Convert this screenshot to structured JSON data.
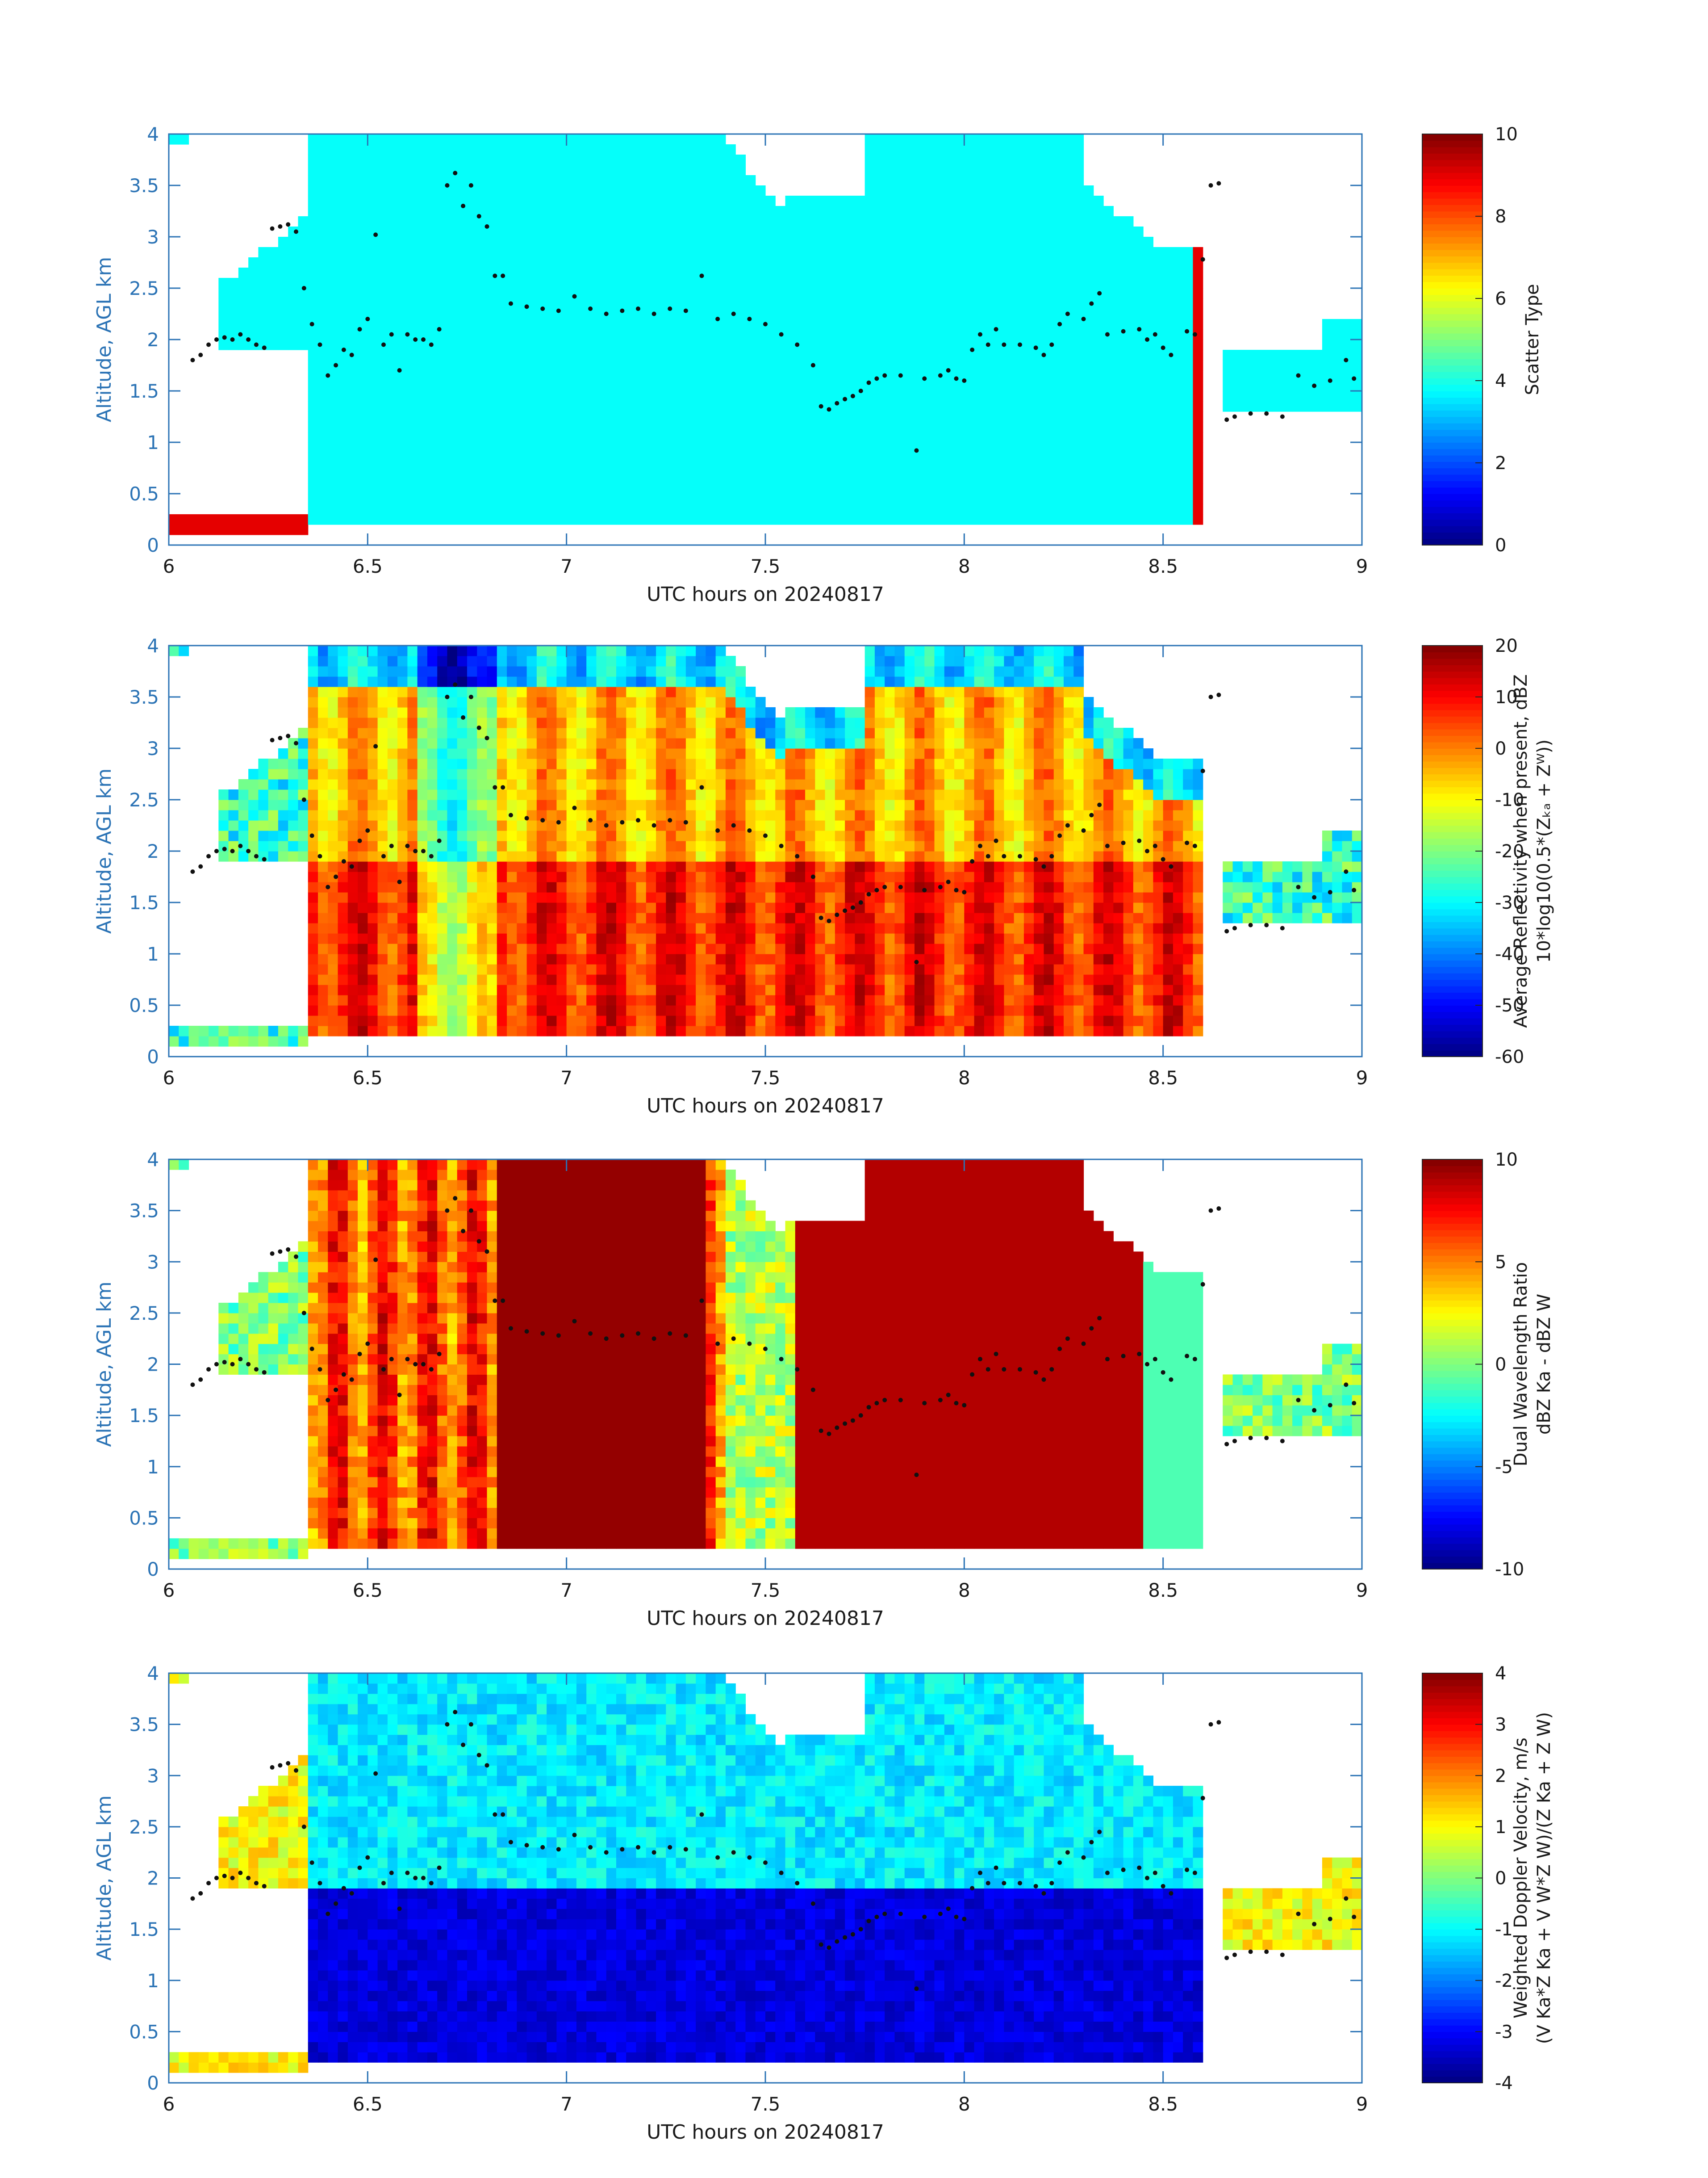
{
  "chart_data": [
    {
      "type": "heatmap",
      "title": "",
      "xlabel": "UTC hours on 20240817",
      "ylabel": "Altitude, AGL km",
      "xlim": [
        6,
        9
      ],
      "ylim": [
        0,
        4
      ],
      "xticks": [
        "6",
        "6.5",
        "7",
        "7.5",
        "8",
        "8.5",
        "9"
      ],
      "yticks": [
        "0",
        "0.5",
        "1",
        "1.5",
        "2",
        "2.5",
        "3",
        "3.5",
        "4"
      ],
      "colorbar": {
        "label_lines": [
          "Scatter Type"
        ],
        "range": [
          0,
          10
        ],
        "ticks": [
          "0",
          "2",
          "4",
          "6",
          "8",
          "10"
        ],
        "colormap": "jet"
      },
      "field": "scatter"
    },
    {
      "type": "heatmap",
      "title": "",
      "xlabel": "UTC hours on 20240817",
      "ylabel": "Altitude, AGL km",
      "xlim": [
        6,
        9
      ],
      "ylim": [
        0,
        4
      ],
      "xticks": [
        "6",
        "6.5",
        "7",
        "7.5",
        "8",
        "8.5",
        "9"
      ],
      "yticks": [
        "0",
        "0.5",
        "1",
        "1.5",
        "2",
        "2.5",
        "3",
        "3.5",
        "4"
      ],
      "colorbar": {
        "label_lines": [
          "Average Reflectivity when present, dBZ",
          "10*log10(0.5*(Zₖₐ + Zᵂ))"
        ],
        "range": [
          -60,
          20
        ],
        "ticks": [
          "-60",
          "-50",
          "-40",
          "-30",
          "-20",
          "-10",
          "0",
          "10",
          "20"
        ],
        "colormap": "jet"
      },
      "field": "reflectivity"
    },
    {
      "type": "heatmap",
      "title": "",
      "xlabel": "UTC hours on 20240817",
      "ylabel": "Altitude, AGL km",
      "xlim": [
        6,
        9
      ],
      "ylim": [
        0,
        4
      ],
      "xticks": [
        "6",
        "6.5",
        "7",
        "7.5",
        "8",
        "8.5",
        "9"
      ],
      "yticks": [
        "0",
        "0.5",
        "1",
        "1.5",
        "2",
        "2.5",
        "3",
        "3.5",
        "4"
      ],
      "colorbar": {
        "label_lines": [
          "Dual Wavelength Ratio",
          "dBZ Ka - dBZ W"
        ],
        "range": [
          -10,
          10
        ],
        "ticks": [
          "-10",
          "-5",
          "0",
          "5",
          "10"
        ],
        "colormap": "jet"
      },
      "field": "dwr"
    },
    {
      "type": "heatmap",
      "title": "",
      "xlabel": "UTC hours on 20240817",
      "ylabel": "Altitude, AGL km",
      "xlim": [
        6,
        9
      ],
      "ylim": [
        0,
        4
      ],
      "xticks": [
        "6",
        "6.5",
        "7",
        "7.5",
        "8",
        "8.5",
        "9"
      ],
      "yticks": [
        "0",
        "0.5",
        "1",
        "1.5",
        "2",
        "2.5",
        "3",
        "3.5",
        "4"
      ],
      "colorbar": {
        "label_lines": [
          "Weighted Doppler Velocity, m/s",
          "(V Ka*Z Ka + V W*Z W)/(Z Ka + Z W)"
        ],
        "range": [
          -4,
          4
        ],
        "ticks": [
          "-4",
          "-3",
          "-2",
          "-1",
          "0",
          "1",
          "2",
          "3",
          "4"
        ],
        "colormap": "jet"
      },
      "field": "velocity"
    }
  ],
  "cloud_base_dots": [
    [
      6.06,
      1.8
    ],
    [
      6.08,
      1.85
    ],
    [
      6.1,
      1.95
    ],
    [
      6.12,
      2.0
    ],
    [
      6.14,
      2.02
    ],
    [
      6.16,
      2.0
    ],
    [
      6.18,
      2.05
    ],
    [
      6.2,
      2.0
    ],
    [
      6.22,
      1.95
    ],
    [
      6.24,
      1.92
    ],
    [
      6.26,
      3.08
    ],
    [
      6.28,
      3.1
    ],
    [
      6.3,
      3.12
    ],
    [
      6.32,
      3.05
    ],
    [
      6.34,
      2.5
    ],
    [
      6.36,
      2.15
    ],
    [
      6.38,
      1.95
    ],
    [
      6.4,
      1.65
    ],
    [
      6.42,
      1.75
    ],
    [
      6.44,
      1.9
    ],
    [
      6.46,
      1.85
    ],
    [
      6.48,
      2.1
    ],
    [
      6.5,
      2.2
    ],
    [
      6.52,
      3.02
    ],
    [
      6.54,
      1.95
    ],
    [
      6.56,
      2.05
    ],
    [
      6.58,
      1.7
    ],
    [
      6.6,
      2.05
    ],
    [
      6.62,
      2.0
    ],
    [
      6.64,
      2.0
    ],
    [
      6.66,
      1.95
    ],
    [
      6.68,
      2.1
    ],
    [
      6.7,
      3.5
    ],
    [
      6.72,
      3.62
    ],
    [
      6.74,
      3.3
    ],
    [
      6.76,
      3.5
    ],
    [
      6.78,
      3.2
    ],
    [
      6.8,
      3.1
    ],
    [
      6.82,
      2.62
    ],
    [
      6.84,
      2.62
    ],
    [
      6.86,
      2.35
    ],
    [
      6.9,
      2.32
    ],
    [
      6.94,
      2.3
    ],
    [
      6.98,
      2.28
    ],
    [
      7.02,
      2.42
    ],
    [
      7.06,
      2.3
    ],
    [
      7.1,
      2.25
    ],
    [
      7.14,
      2.28
    ],
    [
      7.18,
      2.3
    ],
    [
      7.22,
      2.25
    ],
    [
      7.26,
      2.3
    ],
    [
      7.3,
      2.28
    ],
    [
      7.34,
      2.62
    ],
    [
      7.38,
      2.2
    ],
    [
      7.42,
      2.25
    ],
    [
      7.46,
      2.2
    ],
    [
      7.5,
      2.15
    ],
    [
      7.54,
      2.05
    ],
    [
      7.58,
      1.95
    ],
    [
      7.62,
      1.75
    ],
    [
      7.64,
      1.35
    ],
    [
      7.66,
      1.32
    ],
    [
      7.68,
      1.38
    ],
    [
      7.7,
      1.42
    ],
    [
      7.72,
      1.45
    ],
    [
      7.74,
      1.5
    ],
    [
      7.76,
      1.58
    ],
    [
      7.78,
      1.62
    ],
    [
      7.8,
      1.65
    ],
    [
      7.84,
      1.65
    ],
    [
      7.88,
      0.92
    ],
    [
      7.9,
      1.62
    ],
    [
      7.94,
      1.65
    ],
    [
      7.96,
      1.7
    ],
    [
      7.98,
      1.62
    ],
    [
      8.0,
      1.6
    ],
    [
      8.02,
      1.9
    ],
    [
      8.04,
      2.05
    ],
    [
      8.06,
      1.95
    ],
    [
      8.08,
      2.1
    ],
    [
      8.1,
      1.95
    ],
    [
      8.14,
      1.95
    ],
    [
      8.18,
      1.92
    ],
    [
      8.2,
      1.85
    ],
    [
      8.22,
      1.95
    ],
    [
      8.24,
      2.15
    ],
    [
      8.26,
      2.25
    ],
    [
      8.3,
      2.2
    ],
    [
      8.32,
      2.35
    ],
    [
      8.34,
      2.45
    ],
    [
      8.36,
      2.05
    ],
    [
      8.4,
      2.08
    ],
    [
      8.44,
      2.1
    ],
    [
      8.46,
      2.0
    ],
    [
      8.48,
      2.05
    ],
    [
      8.5,
      1.92
    ],
    [
      8.52,
      1.85
    ],
    [
      8.56,
      2.08
    ],
    [
      8.58,
      2.05
    ],
    [
      8.6,
      2.78
    ],
    [
      8.62,
      3.5
    ],
    [
      8.64,
      3.52
    ],
    [
      8.66,
      1.22
    ],
    [
      8.68,
      1.25
    ],
    [
      8.72,
      1.28
    ],
    [
      8.76,
      1.28
    ],
    [
      8.8,
      1.25
    ],
    [
      8.84,
      1.65
    ],
    [
      8.88,
      1.55
    ],
    [
      8.92,
      1.6
    ],
    [
      8.96,
      1.8
    ],
    [
      8.98,
      1.62
    ]
  ]
}
